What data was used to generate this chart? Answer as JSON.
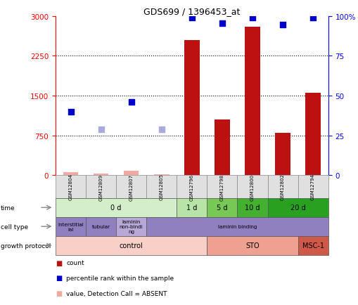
{
  "title": "GDS699 / 1396453_at",
  "samples": [
    "GSM12804",
    "GSM12809",
    "GSM12807",
    "GSM12805",
    "GSM12796",
    "GSM12798",
    "GSM12800",
    "GSM12802",
    "GSM12794"
  ],
  "count_values": [
    55,
    25,
    80,
    15,
    2550,
    1050,
    2800,
    800,
    1550
  ],
  "count_absent": [
    true,
    true,
    true,
    true,
    false,
    false,
    false,
    false,
    false
  ],
  "percentile_values_left": [
    1200,
    null,
    1380,
    null,
    2970,
    2860,
    2970,
    2840,
    2970
  ],
  "percentile_absent": [
    false,
    null,
    false,
    null,
    false,
    false,
    false,
    false,
    false
  ],
  "rank_absent_values_left": [
    null,
    870,
    null,
    870,
    null,
    null,
    null,
    null,
    null
  ],
  "ylim_left": [
    0,
    3000
  ],
  "ylim_right": [
    0,
    100
  ],
  "yticks_left": [
    0,
    750,
    1500,
    2250,
    3000
  ],
  "yticks_right": [
    0,
    25,
    50,
    75,
    100
  ],
  "time_rows": [
    {
      "label": "0 d",
      "start": 0,
      "end": 3,
      "color": "#d4eeca"
    },
    {
      "label": "1 d",
      "start": 4,
      "end": 4,
      "color": "#b8e4a8"
    },
    {
      "label": "5 d",
      "start": 5,
      "end": 5,
      "color": "#78c855"
    },
    {
      "label": "10 d",
      "start": 6,
      "end": 6,
      "color": "#44b030"
    },
    {
      "label": "20 d",
      "start": 7,
      "end": 8,
      "color": "#28a020"
    }
  ],
  "cell_rows": [
    {
      "label": "interstitial\nial",
      "start": 0,
      "end": 0,
      "color": "#9080c0"
    },
    {
      "label": "tubular",
      "start": 1,
      "end": 1,
      "color": "#9080c0"
    },
    {
      "label": "laminin\nnon-bindi\nng",
      "start": 2,
      "end": 2,
      "color": "#b8a8d8"
    },
    {
      "label": "laminin binding",
      "start": 3,
      "end": 8,
      "color": "#9080c0"
    }
  ],
  "growth_rows": [
    {
      "label": "control",
      "start": 0,
      "end": 4,
      "color": "#f8d0c8"
    },
    {
      "label": "STO",
      "start": 5,
      "end": 7,
      "color": "#f0a090"
    },
    {
      "label": "MSC-1",
      "start": 8,
      "end": 8,
      "color": "#d05848"
    }
  ],
  "bar_color": "#bb1111",
  "bar_absent_color": "#f4a9a0",
  "dot_blue": "#0000cc",
  "dot_lightblue": "#aaaadd",
  "bg_color": "#ffffff",
  "plot_bg": "#ffffff",
  "label_area_color": "#e0e0e0"
}
